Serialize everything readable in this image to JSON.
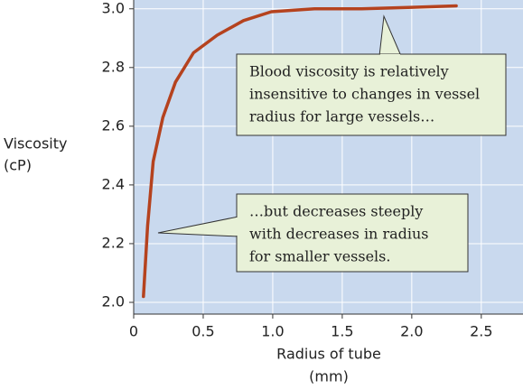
{
  "chart_data": {
    "type": "line",
    "ylabel": [
      "Viscosity",
      "(cP)"
    ],
    "xlabel": [
      "Radius of tube",
      "(mm)"
    ],
    "x": [
      0.07,
      0.1,
      0.14,
      0.21,
      0.3,
      0.43,
      0.6,
      0.79,
      0.99,
      1.3,
      1.64,
      2.0,
      2.32
    ],
    "series": [
      {
        "color": "#b5421e",
        "values": [
          2.02,
          2.26,
          2.48,
          2.63,
          2.75,
          2.85,
          2.91,
          2.96,
          2.99,
          3.0,
          3.0,
          3.005,
          3.01
        ]
      }
    ],
    "xlim": [
      0,
      2.8
    ],
    "ylim": [
      1.96,
      3.03
    ],
    "xticks": [
      0,
      0.5,
      {
        "value": 1,
        "label": "1.0"
      },
      1.5,
      {
        "value": 2,
        "label": "2.0"
      },
      2.5
    ],
    "yticks": [
      {
        "value": 2,
        "label": "2.0"
      },
      2.2,
      2.4,
      2.6,
      2.8,
      {
        "value": 3,
        "label": "3.0"
      }
    ],
    "grid": true,
    "annotations": [
      {
        "lines": [
          "Blood viscosity is relatively",
          "insensitive to changes in vessel",
          "radius for large vessels…"
        ]
      },
      {
        "lines": [
          "…but decreases steeply",
          "with decreases in radius",
          "for smaller vessels."
        ]
      }
    ]
  }
}
